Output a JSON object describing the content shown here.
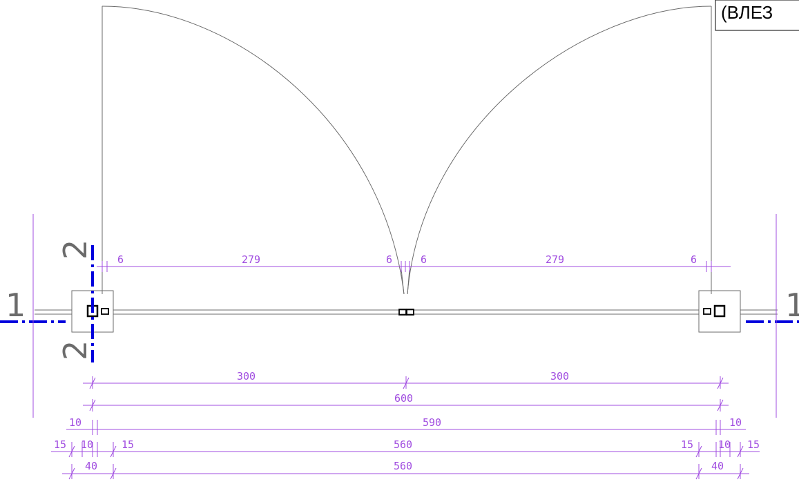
{
  "title_box": {
    "text": "(ВЛЕЗ"
  },
  "axis_labels": {
    "horizontal": "1",
    "vertical": "2"
  },
  "dimensions": {
    "top_row": [
      "6",
      "279",
      "6",
      "6",
      "279",
      "6"
    ],
    "row_300": [
      "300",
      "300"
    ],
    "row_600": "600",
    "row_590": {
      "left": "10",
      "middle": "590",
      "right": "10"
    },
    "row_560a": {
      "left_outer": "15",
      "left_inner": "10",
      "left_post": "15",
      "middle": "560",
      "right_post": "15",
      "right_inner": "10",
      "right_outer": "15"
    },
    "row_560b": {
      "left": "40",
      "middle": "560",
      "right": "40"
    }
  },
  "colors": {
    "dimension": "#a04ce0",
    "axis": "#0000dd",
    "outline": "#6b6b6b",
    "element": "#000000"
  }
}
